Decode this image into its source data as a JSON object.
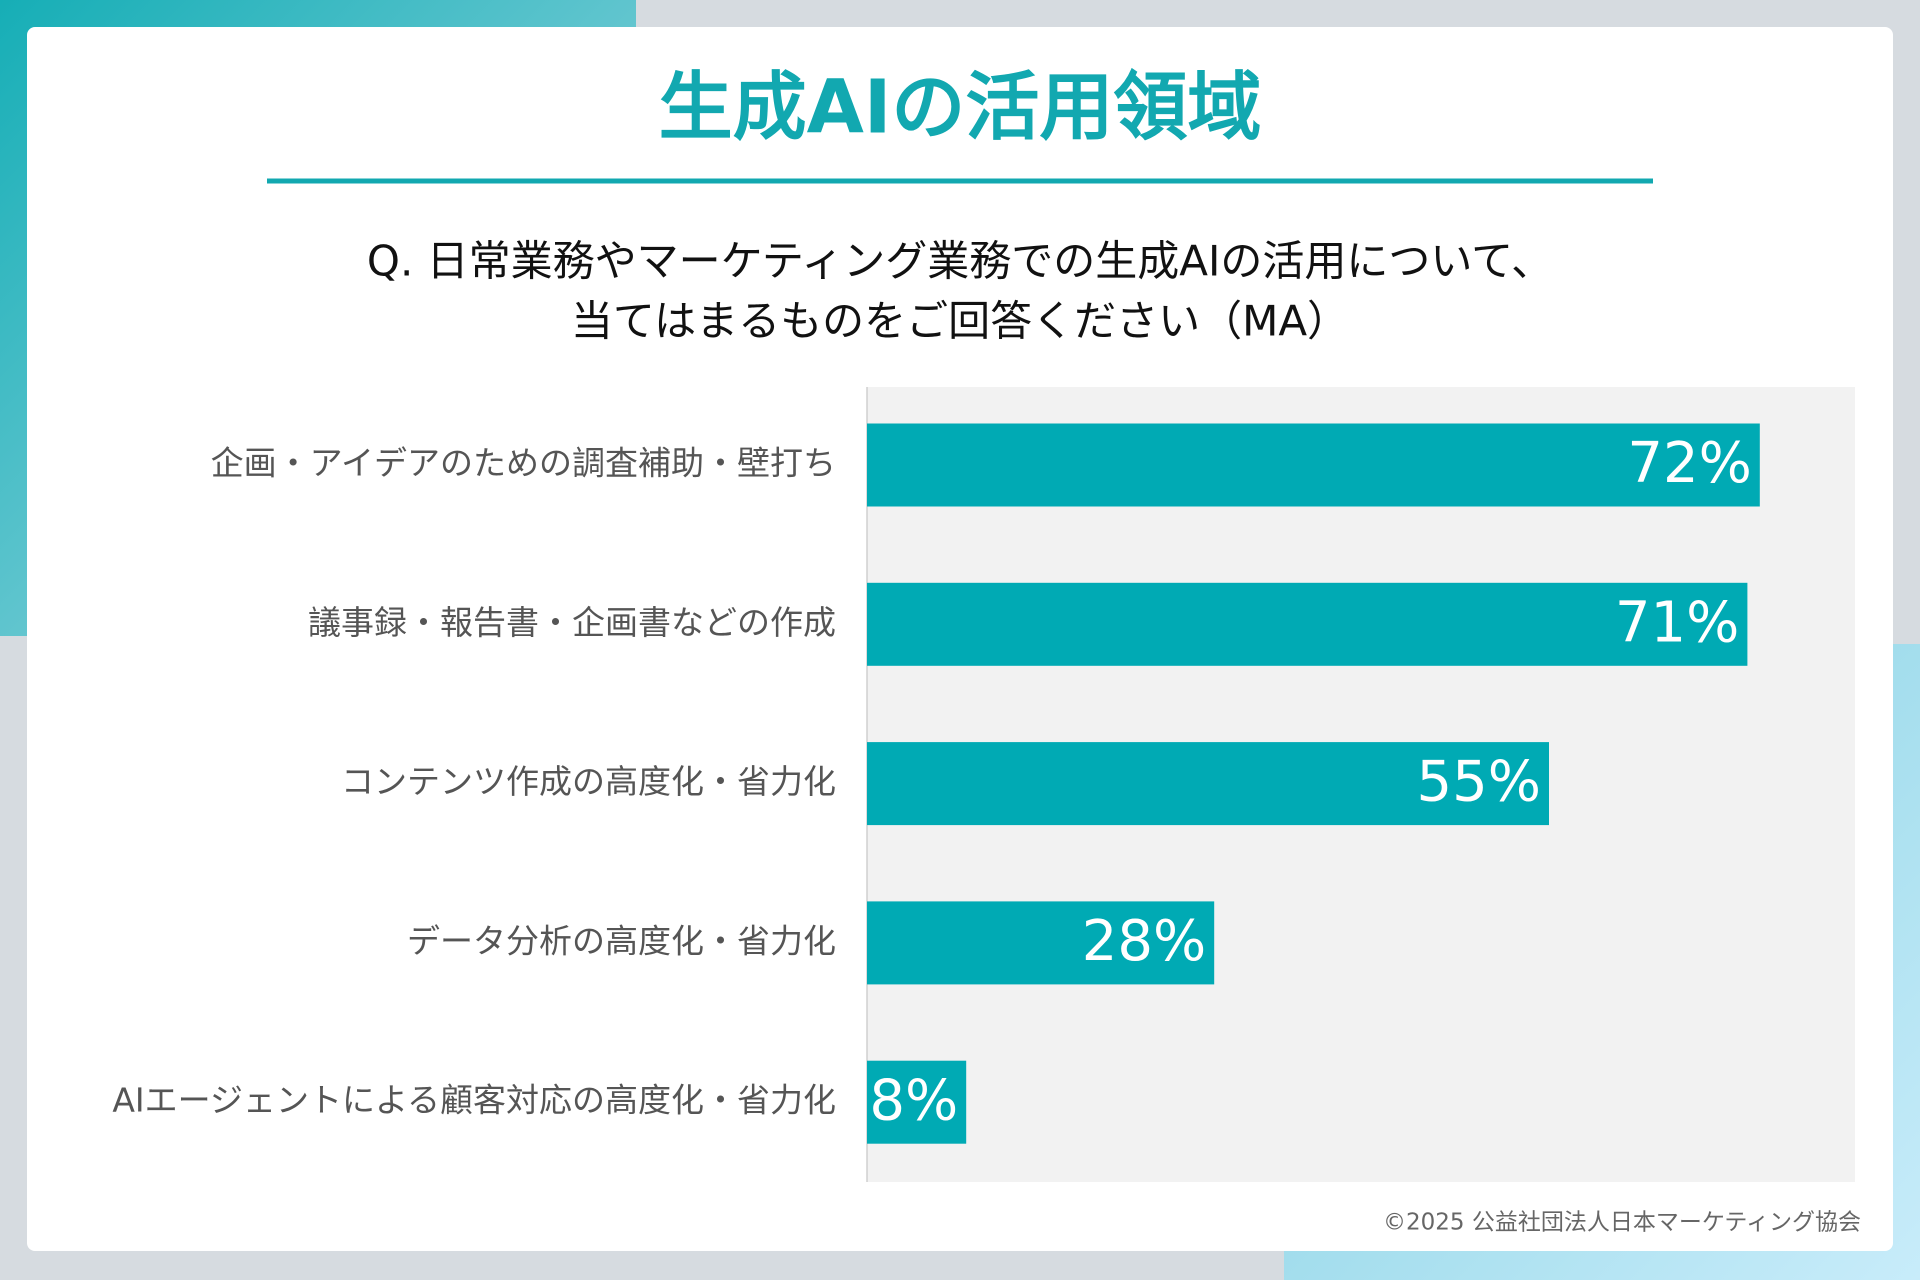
{
  "chart_data": {
    "type": "bar",
    "orientation": "horizontal",
    "title": "生成AIの活用領域",
    "subtitle": [
      "Q. 日常業務やマーケティング業務での生成AIの活用について、",
      "当てはまるものをご回答ください（MA）"
    ],
    "categories": [
      "企画・アイデアのための調査補助・壁打ち",
      "議事録・報告書・企画書などの作成",
      "コンテンツ作成の高度化・省力化",
      "データ分析の高度化・省力化",
      "AIエージェントによる顧客対応の高度化・省力化"
    ],
    "values": [
      72,
      71,
      55,
      28,
      8
    ],
    "value_labels": [
      "72%",
      "71%",
      "55%",
      "28%",
      "8%"
    ],
    "color": "#00aab4"
  },
  "footer": "©2025 公益社団法人日本マーケティング協会"
}
